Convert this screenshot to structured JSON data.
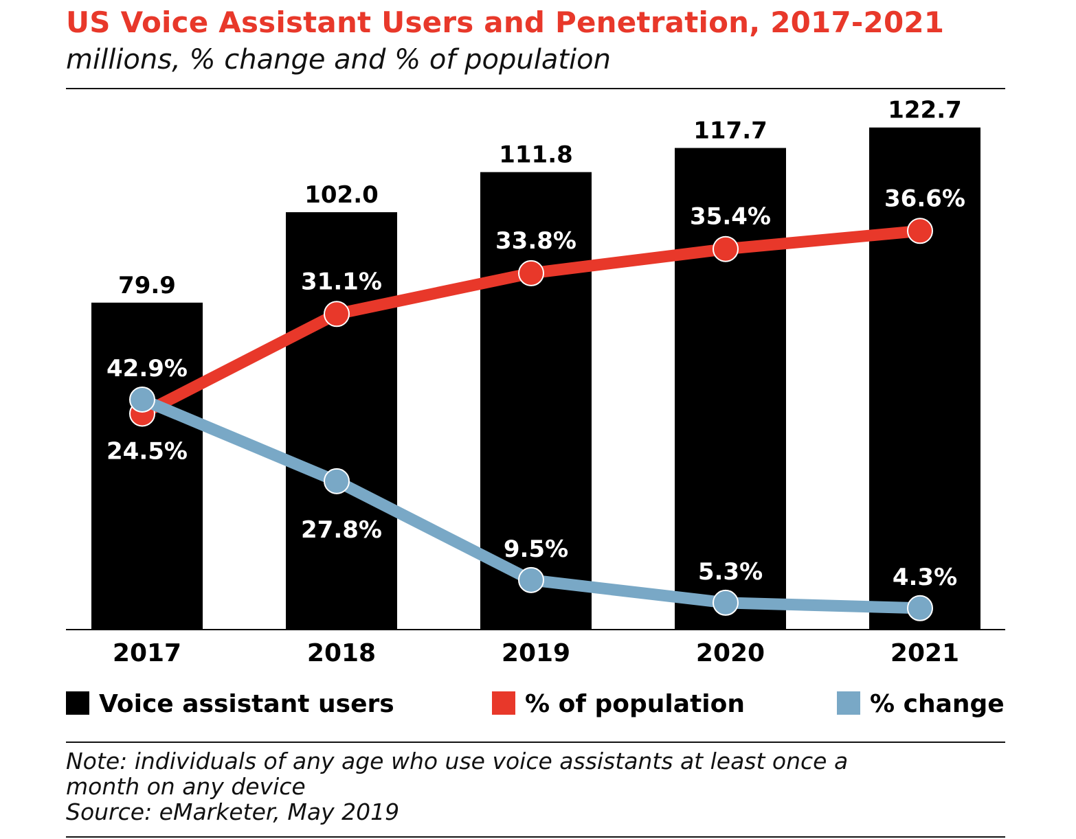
{
  "title": "US Voice Assistant Users and Penetration, 2017-2021",
  "subtitle": "millions, % change and % of population",
  "note": [
    "Note: individuals of any age who use voice assistants at least once a",
    "month on any device"
  ],
  "source": "Source: eMarketer, May 2019",
  "colors": {
    "title": "#e8382a",
    "bars": "#000000",
    "population": "#e8382a",
    "change": "#79a8c6"
  },
  "chart_data": {
    "type": "bar",
    "categories": [
      "2017",
      "2018",
      "2019",
      "2020",
      "2021"
    ],
    "series": [
      {
        "name": "Voice assistant users",
        "type": "bar",
        "values": [
          79.9,
          102.0,
          111.8,
          117.7,
          122.7
        ],
        "labels": [
          "79.9",
          "102.0",
          "111.8",
          "117.7",
          "122.7"
        ]
      },
      {
        "name": "% of population",
        "type": "line",
        "values": [
          24.5,
          31.1,
          33.8,
          35.4,
          36.6
        ],
        "labels": [
          "24.5%",
          "31.1%",
          "33.8%",
          "35.4%",
          "36.6%"
        ]
      },
      {
        "name": "% change",
        "type": "line",
        "values": [
          42.9,
          27.8,
          9.5,
          5.3,
          4.3
        ],
        "labels": [
          "42.9%",
          "27.8%",
          "9.5%",
          "5.3%",
          "4.3%"
        ]
      }
    ],
    "grid": false,
    "legend": "bottom"
  }
}
